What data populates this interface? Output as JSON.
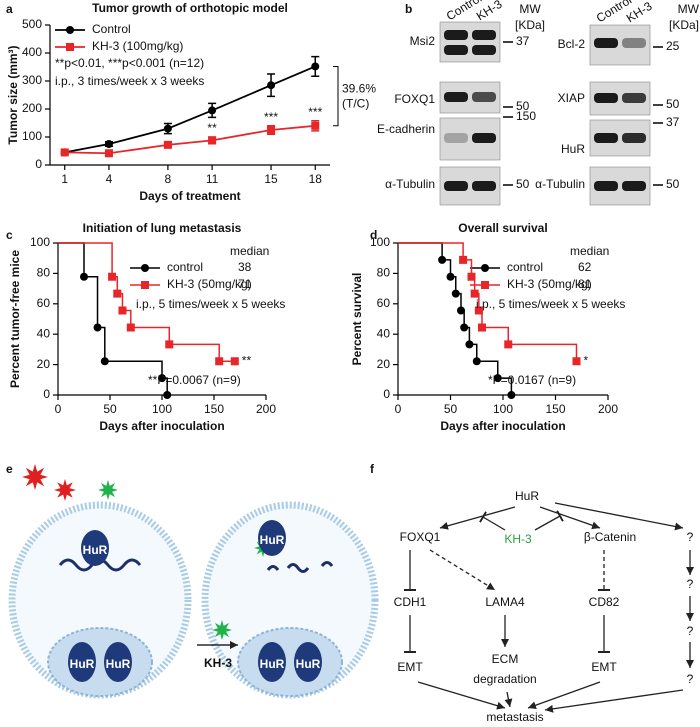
{
  "panel_labels": [
    "a",
    "b",
    "c",
    "d",
    "e",
    "f"
  ],
  "chart_data": [
    {
      "type": "line",
      "title": "Tumor growth of orthotopic model",
      "xlabel": "Days of treatment",
      "ylabel": "Tumor size (mm³)",
      "x": [
        1,
        4,
        8,
        11,
        15,
        18
      ],
      "xlim": [
        0,
        19
      ],
      "xticks": [
        1,
        4,
        8,
        11,
        15,
        18
      ],
      "ylim": [
        0,
        500
      ],
      "yticks": [
        0,
        100,
        200,
        300,
        400,
        500
      ],
      "series": [
        {
          "name": "Control",
          "color": "#000000",
          "marker": "circle",
          "values": [
            45,
            75,
            130,
            195,
            285,
            352
          ],
          "errors": [
            5,
            8,
            18,
            25,
            40,
            35
          ]
        },
        {
          "name": "KH-3 (100mg/kg)",
          "color": "#e8262a",
          "marker": "square",
          "values": [
            45,
            42,
            72,
            88,
            125,
            140
          ],
          "errors": [
            4,
            5,
            8,
            12,
            15,
            18
          ],
          "point_labels": [
            null,
            null,
            null,
            "**",
            "***",
            "***"
          ]
        }
      ],
      "annotations": [
        "**p<0.01, ***p<0.001 (n=12)",
        "i.p., 3 times/week x 3 weeks"
      ],
      "ratio_label": [
        "39.6%",
        "(T/C)"
      ]
    },
    {
      "type": "step",
      "title": "Initiation of lung metastasis",
      "xlabel": "Days after inoculation",
      "ylabel": "Percent tumor-free mice",
      "xlim": [
        0,
        200
      ],
      "xticks": [
        0,
        50,
        100,
        150,
        200
      ],
      "ylim": [
        0,
        100
      ],
      "yticks": [
        0,
        20,
        40,
        60,
        80,
        100
      ],
      "median_header": "median",
      "series": [
        {
          "name": "control",
          "color": "#000000",
          "marker": "circle",
          "x": [
            0,
            25,
            38,
            45,
            100,
            105
          ],
          "values": [
            100,
            77.8,
            44.4,
            22.2,
            11.1,
            0
          ],
          "median": 38
        },
        {
          "name": "KH-3 (50mg/kg)",
          "color": "#e8262a",
          "marker": "square",
          "x": [
            0,
            52,
            57,
            62,
            70,
            107,
            155,
            170
          ],
          "values": [
            100,
            77.8,
            66.7,
            55.6,
            44.4,
            33.3,
            22.2,
            22.2
          ],
          "median": 71,
          "end_label": "**"
        }
      ],
      "annotations": [
        "i.p., 5 times/week x 5 weeks",
        "**P=0.0067 (n=9)"
      ]
    },
    {
      "type": "step",
      "title": "Overall survival",
      "xlabel": "Days after inoculation",
      "ylabel": "Percent survival",
      "xlim": [
        0,
        200
      ],
      "xticks": [
        0,
        50,
        100,
        150,
        200
      ],
      "ylim": [
        0,
        100
      ],
      "yticks": [
        0,
        20,
        40,
        60,
        80,
        100
      ],
      "median_header": "median",
      "series": [
        {
          "name": "control",
          "color": "#000000",
          "marker": "circle",
          "x": [
            0,
            42,
            50,
            55,
            60,
            63,
            68,
            75,
            95,
            108
          ],
          "values": [
            100,
            88.9,
            77.8,
            66.7,
            55.6,
            44.4,
            33.3,
            22.2,
            11.1,
            0
          ],
          "median": 62
        },
        {
          "name": "KH-3 (50mg/kg)",
          "color": "#e8262a",
          "marker": "square",
          "x": [
            0,
            62,
            70,
            73,
            77,
            80,
            105,
            170
          ],
          "values": [
            100,
            88.9,
            77.8,
            66.7,
            55.6,
            44.4,
            33.3,
            22.2
          ],
          "median": 81,
          "end_label": "*"
        }
      ],
      "annotations": [
        "i.p., 5 times/week x 5 weeks",
        "*P=0.0167 (n=9)"
      ]
    }
  ],
  "blot": {
    "lanes": [
      "Control",
      "KH-3"
    ],
    "mw_header": [
      "MW",
      "[KDa]"
    ],
    "left": [
      {
        "protein": "Msi2",
        "mw": 37
      },
      {
        "protein": "FOXQ1",
        "mw": 50
      },
      {
        "protein": "E-cadherin",
        "mw": 150
      },
      {
        "protein": "α-Tubulin",
        "mw": 50
      }
    ],
    "right": [
      {
        "protein": "Bcl-2",
        "mw": 25
      },
      {
        "protein": "XIAP",
        "mw": 50
      },
      {
        "protein": "HuR",
        "mw": 37
      },
      {
        "protein": "α-Tubulin",
        "mw": 50
      }
    ]
  },
  "diagram_e": {
    "protein": "HuR",
    "drug": "KH-3"
  },
  "diagram_f": {
    "nodes": [
      {
        "label": "HuR"
      },
      {
        "label": "FOXQ1"
      },
      {
        "label": "KH-3",
        "color": "#2e9e3e"
      },
      {
        "label": "β-Catenin"
      },
      {
        "label": "?"
      },
      {
        "label": "CDH1"
      },
      {
        "label": "LAMA4"
      },
      {
        "label": "CD82"
      },
      {
        "label": "?"
      },
      {
        "label": "EMT"
      },
      {
        "label": "ECM"
      },
      {
        "label": "degradation"
      },
      {
        "label": "EMT"
      },
      {
        "label": "?"
      },
      {
        "label": "?"
      },
      {
        "label": "metastasis"
      }
    ]
  }
}
